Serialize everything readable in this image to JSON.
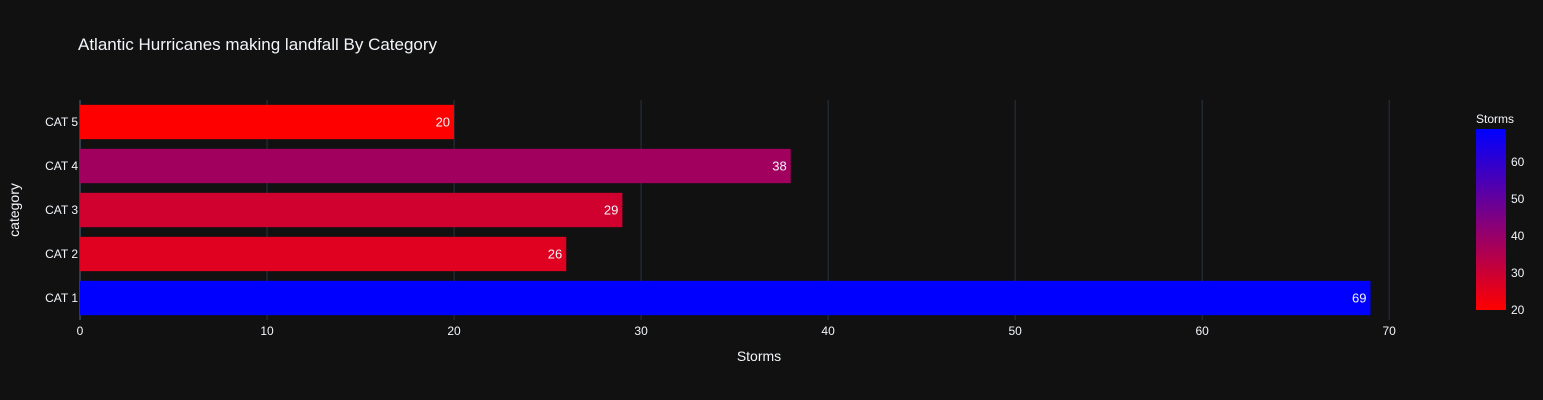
{
  "chart_data": {
    "type": "bar",
    "orientation": "horizontal",
    "title": "Atlantic Hurricanes making landfall By Category",
    "xlabel": "Storms",
    "ylabel": "category",
    "categories": [
      "CAT 1",
      "CAT 2",
      "CAT 3",
      "CAT 4",
      "CAT 5"
    ],
    "values": [
      69,
      26,
      29,
      38,
      20
    ],
    "data_labels": [
      "69",
      "26",
      "29",
      "38",
      "20"
    ],
    "xlim": [
      0,
      74
    ],
    "xticks": [
      0,
      10,
      20,
      30,
      40,
      50,
      60,
      70
    ],
    "grid": true,
    "colorbar": {
      "title": "Storms",
      "range": [
        20,
        69
      ],
      "ticks": [
        20,
        30,
        40,
        50,
        60
      ],
      "color_low": "#ff0000",
      "color_high": "#0000ff"
    }
  },
  "colors": {
    "background": "#111111",
    "grid": "#283442",
    "text": "#f2f5fa"
  }
}
